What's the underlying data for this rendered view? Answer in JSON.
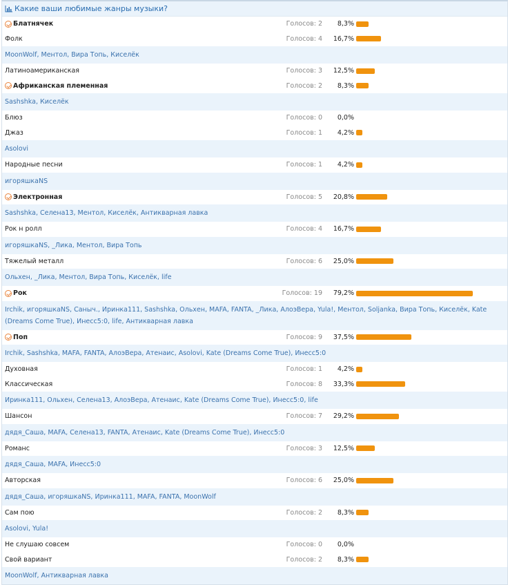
{
  "poll": {
    "title": "Какие ваши любимые жанры музыки?",
    "title_icon": "bar-chart-icon",
    "bar_color": "#f0930e",
    "votes_prefix": "Голосов:",
    "options": [
      {
        "label": "Блатнячек",
        "votes": "Голосов: 2",
        "percent": "8,3%",
        "value": 8.3,
        "voted": true
      },
      {
        "label": "Фолк",
        "votes": "Голосов: 4",
        "percent": "16,7%",
        "value": 16.7,
        "voted": false,
        "voters": "MoonWolf, Ментол, Вира Топь, Киселёк"
      },
      {
        "label": "Латиноамериканская",
        "votes": "Голосов: 3",
        "percent": "12,5%",
        "value": 12.5,
        "voted": false
      },
      {
        "label": "Африканская племенная",
        "votes": "Голосов: 2",
        "percent": "8,3%",
        "value": 8.3,
        "voted": true,
        "voters": "Sashshka, Киселёк"
      },
      {
        "label": "Блюз",
        "votes": "Голосов: 0",
        "percent": "0,0%",
        "value": 0,
        "voted": false
      },
      {
        "label": "Джаз",
        "votes": "Голосов: 1",
        "percent": "4,2%",
        "value": 4.2,
        "voted": false,
        "voters": "Asolovi"
      },
      {
        "label": "Народные песни",
        "votes": "Голосов: 1",
        "percent": "4,2%",
        "value": 4.2,
        "voted": false,
        "voters": "игоряшкаNS"
      },
      {
        "label": "Электронная",
        "votes": "Голосов: 5",
        "percent": "20,8%",
        "value": 20.8,
        "voted": true,
        "voters": "Sashshka, Селена13, Ментол, Киселёк, Антикварная лавка"
      },
      {
        "label": "Рок н ролл",
        "votes": "Голосов: 4",
        "percent": "16,7%",
        "value": 16.7,
        "voted": false,
        "voters": "игоряшкаNS, _Лика, Ментол, Вира Топь"
      },
      {
        "label": "Тяжелый металл",
        "votes": "Голосов: 6",
        "percent": "25,0%",
        "value": 25.0,
        "voted": false,
        "voters": "Ольхен, _Лика, Ментол, Вира Топь, Киселёк, life"
      },
      {
        "label": "Рок",
        "votes": "Голосов: 19",
        "percent": "79,2%",
        "value": 79.2,
        "voted": true,
        "voters": "Irchik, игоряшкаNS, Саныч., Иринка111, Sashshka, Ольхен, MAFA, FANTA, _Лика, АлоэВера, Yula!, Ментол, Soljanka, Вира Топь, Киселёк, Kate (Dreams Come True), Инесс5:0, life, Антикварная лавка"
      },
      {
        "label": "Поп",
        "votes": "Голосов: 9",
        "percent": "37,5%",
        "value": 37.5,
        "voted": true,
        "voters": "Irchik, Sashshka, MAFA, FANTA, АлоэВера, Атенаис, Asolovi, Kate (Dreams Come True), Инесс5:0"
      },
      {
        "label": "Духовная",
        "votes": "Голосов: 1",
        "percent": "4,2%",
        "value": 4.2,
        "voted": false
      },
      {
        "label": "Классическая",
        "votes": "Голосов: 8",
        "percent": "33,3%",
        "value": 33.3,
        "voted": false,
        "voters": "Иринка111, Ольхен, Селена13, АлоэВера, Атенаис, Kate (Dreams Come True), Инесс5:0, life"
      },
      {
        "label": "Шансон",
        "votes": "Голосов: 7",
        "percent": "29,2%",
        "value": 29.2,
        "voted": false,
        "voters": "дядя_Саша, MAFA, Селена13, FANTA, Атенаис, Kate (Dreams Come True), Инесс5:0"
      },
      {
        "label": "Романс",
        "votes": "Голосов: 3",
        "percent": "12,5%",
        "value": 12.5,
        "voted": false,
        "voters": "дядя_Саша, MAFA, Инесс5:0"
      },
      {
        "label": "Авторская",
        "votes": "Голосов: 6",
        "percent": "25,0%",
        "value": 25.0,
        "voted": false,
        "voters": "дядя_Саша, игоряшкаNS, Иринка111, MAFA, FANTA, MoonWolf"
      },
      {
        "label": "Сам пою",
        "votes": "Голосов: 2",
        "percent": "8,3%",
        "value": 8.3,
        "voted": false,
        "voters": "Asolovi, Yula!"
      },
      {
        "label": "Не слушаю совсем",
        "votes": "Голосов: 0",
        "percent": "0,0%",
        "value": 0,
        "voted": false
      },
      {
        "label": "Свой вариант",
        "votes": "Голосов: 2",
        "percent": "8,3%",
        "value": 8.3,
        "voted": false,
        "voters": "MoonWolf, Антикварная лавка"
      }
    ]
  }
}
